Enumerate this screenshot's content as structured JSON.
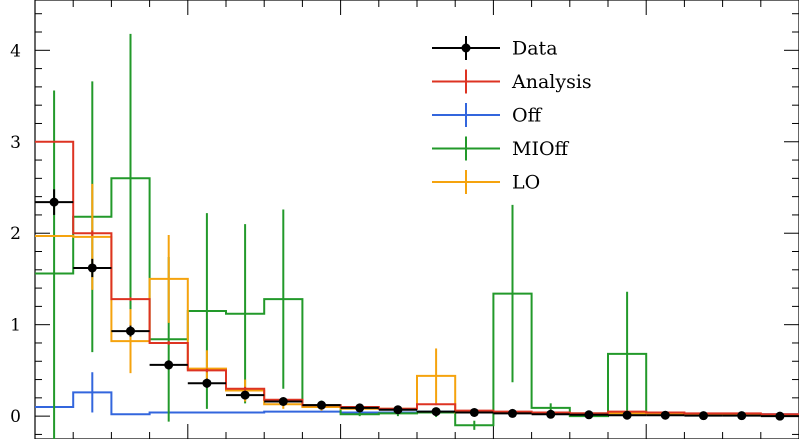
{
  "chart_data": {
    "type": "histogram",
    "title": "",
    "xlabel": "",
    "ylabel": "",
    "x_range": [
      0,
      1
    ],
    "ylim": [
      -0.25,
      4.55
    ],
    "y_ticks": [
      0,
      1,
      2,
      3,
      4
    ],
    "y_tick_labels": [
      "0",
      "1",
      "2",
      "3",
      "4"
    ],
    "grid": false,
    "legend_position": "top-right",
    "bins": [
      0.0,
      0.05,
      0.1,
      0.15,
      0.2,
      0.25,
      0.3,
      0.35,
      0.4,
      0.45,
      0.5,
      0.55,
      0.6,
      0.65,
      0.7,
      0.75,
      0.8,
      0.85,
      0.9,
      0.95,
      1.0
    ],
    "legend": [
      "Data",
      "Analysis",
      "Off",
      "MIOff",
      "LO"
    ],
    "series": [
      {
        "name": "Data",
        "color": "#000000",
        "style": "points",
        "values": [
          2.34,
          1.62,
          0.93,
          0.56,
          0.36,
          0.23,
          0.16,
          0.12,
          0.09,
          0.07,
          0.05,
          0.04,
          0.03,
          0.02,
          0.015,
          0.01,
          0.01,
          0.005,
          0.005,
          0.0
        ],
        "errors": [
          0.14,
          0.1,
          0.06,
          0.05,
          0.05,
          0.04,
          0.03,
          0.02,
          0.02,
          0.02,
          0.015,
          0.01,
          0.01,
          0.01,
          0.01,
          0.005,
          0.005,
          0.005,
          0.005,
          0.005
        ]
      },
      {
        "name": "Analysis",
        "color": "#dd3322",
        "style": "step",
        "values": [
          3.0,
          2.0,
          1.28,
          0.8,
          0.5,
          0.3,
          0.18,
          0.12,
          0.1,
          0.08,
          0.13,
          0.06,
          0.05,
          0.04,
          0.03,
          0.05,
          0.04,
          0.03,
          0.03,
          0.02
        ],
        "errors": [
          0.0,
          0.03,
          0.02,
          0.02,
          0.02,
          0.02,
          0.01,
          0.01,
          0.01,
          0.01,
          0.01,
          0.01,
          0.01,
          0.01,
          0.01,
          0.01,
          0.01,
          0.01,
          0.01,
          0.01
        ]
      },
      {
        "name": "Off",
        "color": "#3366dd",
        "style": "step",
        "values": [
          0.1,
          0.26,
          0.02,
          0.04,
          0.04,
          0.04,
          0.05,
          0.05,
          0.04,
          0.04,
          0.05,
          0.04,
          0.04,
          0.03,
          0.03,
          0.03,
          0.03,
          0.02,
          0.02,
          0.02
        ],
        "errors": [
          0.0,
          0.22,
          0.0,
          0.0,
          0.0,
          0.0,
          0.0,
          0.0,
          0.0,
          0.0,
          0.0,
          0.0,
          0.0,
          0.0,
          0.0,
          0.0,
          0.0,
          0.0,
          0.0,
          0.0
        ]
      },
      {
        "name": "MIOff",
        "color": "#22992a",
        "style": "step",
        "values": [
          1.56,
          2.18,
          2.6,
          0.84,
          1.15,
          1.12,
          1.28,
          0.12,
          0.02,
          0.03,
          0.04,
          -0.1,
          1.34,
          0.09,
          0.0,
          0.68,
          0.02,
          0.02,
          0.02,
          0.01
        ],
        "errors": [
          2.0,
          1.48,
          1.58,
          0.9,
          1.07,
          0.98,
          0.98,
          0.05,
          0.02,
          0.03,
          0.05,
          0.05,
          0.97,
          0.05,
          0.02,
          0.68,
          0.02,
          0.02,
          0.02,
          0.02
        ]
      },
      {
        "name": "LO",
        "color": "#f5a30e",
        "style": "step",
        "values": [
          1.97,
          1.96,
          0.82,
          1.5,
          0.52,
          0.28,
          0.13,
          0.1,
          0.08,
          0.08,
          0.44,
          0.04,
          0.04,
          0.03,
          0.03,
          0.03,
          0.02,
          0.02,
          0.02,
          0.01
        ],
        "errors": [
          0.0,
          0.58,
          0.35,
          0.48,
          0.2,
          0.12,
          0.05,
          0.04,
          0.03,
          0.03,
          0.3,
          0.02,
          0.02,
          0.02,
          0.02,
          0.02,
          0.01,
          0.01,
          0.01,
          0.01
        ]
      }
    ]
  }
}
